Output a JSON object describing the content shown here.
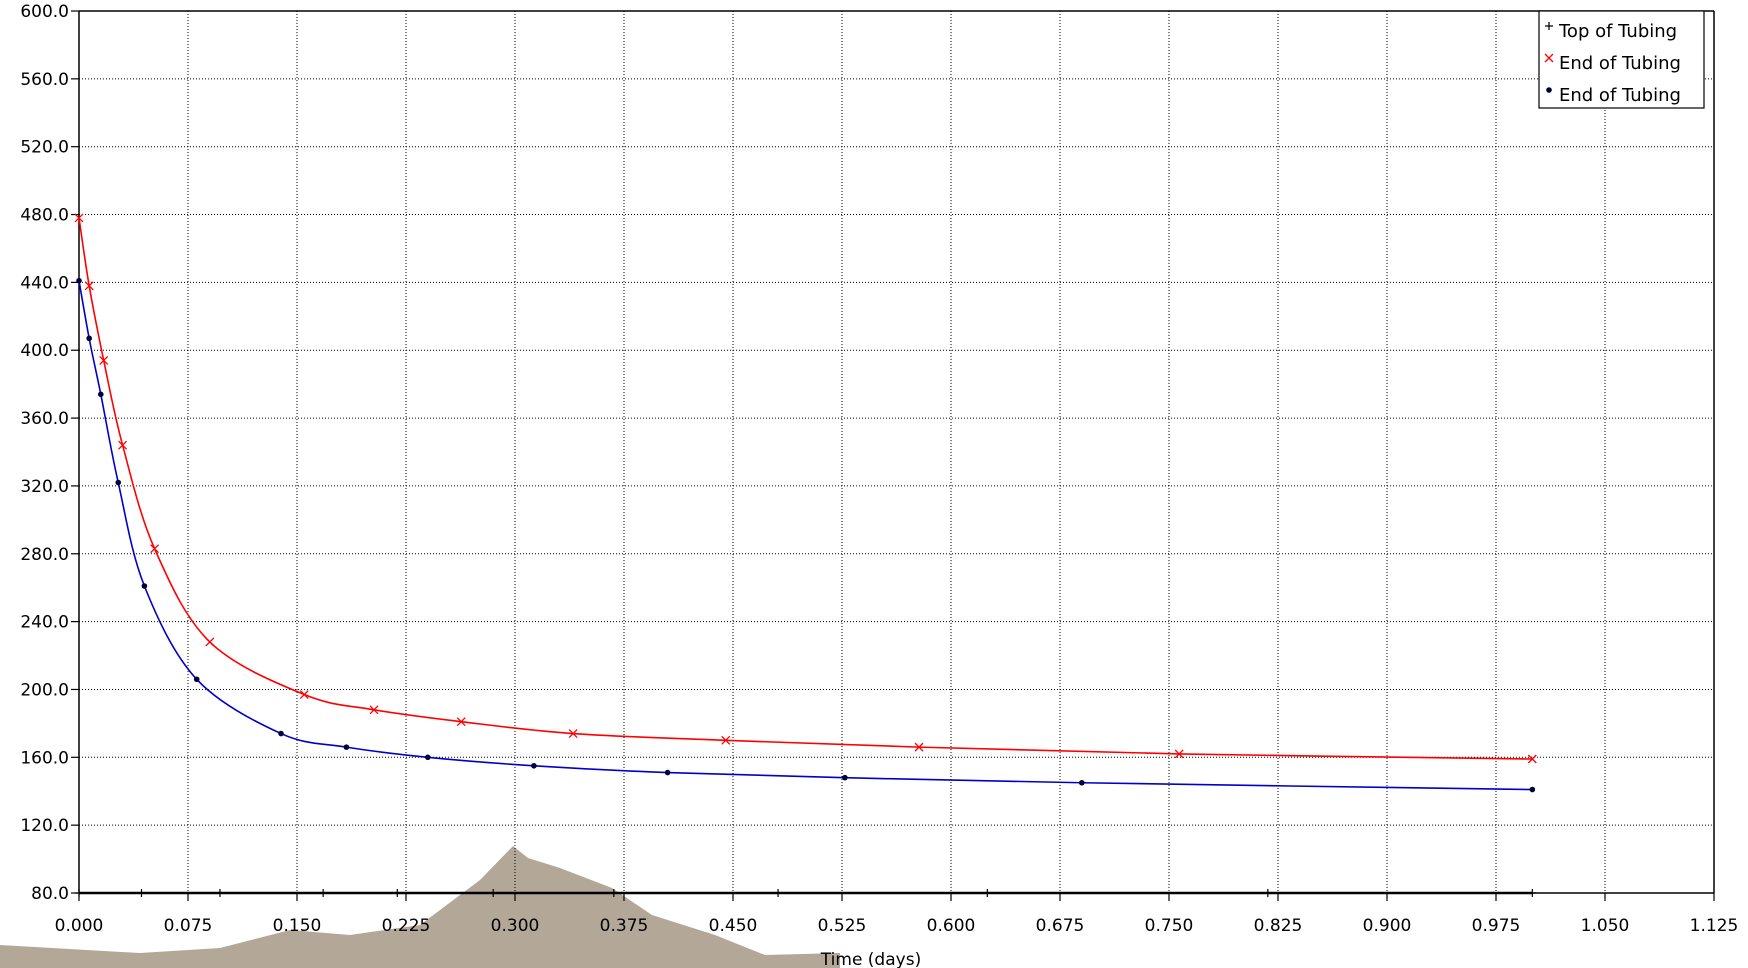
{
  "chart_data": {
    "type": "line",
    "xlabel": "Time (days)",
    "ylabel": "",
    "xlim": [
      0.0,
      1.125
    ],
    "ylim": [
      80.0,
      600.0
    ],
    "x_ticks": [
      "0.000",
      "0.075",
      "0.150",
      "0.225",
      "0.300",
      "0.375",
      "0.450",
      "0.525",
      "0.600",
      "0.675",
      "0.750",
      "0.825",
      "0.900",
      "0.975",
      "1.050",
      "1.125"
    ],
    "y_ticks": [
      "80.0",
      "120.0",
      "160.0",
      "200.0",
      "240.0",
      "280.0",
      "320.0",
      "360.0",
      "400.0",
      "440.0",
      "480.0",
      "520.0",
      "560.0",
      "600.0"
    ],
    "grid": true,
    "legend_position": "top-right",
    "series": [
      {
        "name": "Top of Tubing",
        "color": "#000000",
        "marker": "plus",
        "points": [
          [
            0.0,
            80.0
          ],
          [
            0.043,
            80.0
          ],
          [
            0.097,
            80.0
          ],
          [
            0.168,
            80.0
          ],
          [
            0.219,
            80.0
          ],
          [
            0.285,
            80.0
          ],
          [
            0.368,
            80.0
          ],
          [
            0.481,
            80.0
          ],
          [
            0.625,
            80.0
          ],
          [
            0.818,
            80.0
          ],
          [
            1.0,
            80.0
          ]
        ]
      },
      {
        "name": "End of Tubing",
        "color": "#ff0000",
        "marker": "x",
        "points": [
          [
            0.0,
            478.0
          ],
          [
            0.007,
            438.0
          ],
          [
            0.017,
            394.0
          ],
          [
            0.03,
            344.0
          ],
          [
            0.052,
            283.0
          ],
          [
            0.09,
            228.0
          ],
          [
            0.155,
            197.0
          ],
          [
            0.203,
            188.0
          ],
          [
            0.263,
            181.0
          ],
          [
            0.34,
            174.0
          ],
          [
            0.445,
            170.0
          ],
          [
            0.578,
            166.0
          ],
          [
            0.757,
            162.0
          ],
          [
            1.0,
            159.0
          ]
        ]
      },
      {
        "name": "End of Tubing",
        "color": "#0000cc",
        "marker": "dot",
        "points": [
          [
            0.0,
            441.0
          ],
          [
            0.007,
            407.0
          ],
          [
            0.015,
            374.0
          ],
          [
            0.027,
            322.0
          ],
          [
            0.045,
            261.0
          ],
          [
            0.081,
            206.0
          ],
          [
            0.139,
            174.0
          ],
          [
            0.184,
            166.0
          ],
          [
            0.24,
            160.0
          ],
          [
            0.313,
            155.0
          ],
          [
            0.405,
            151.0
          ],
          [
            0.527,
            148.0
          ],
          [
            0.69,
            145.0
          ],
          [
            1.0,
            141.0
          ]
        ]
      }
    ]
  }
}
